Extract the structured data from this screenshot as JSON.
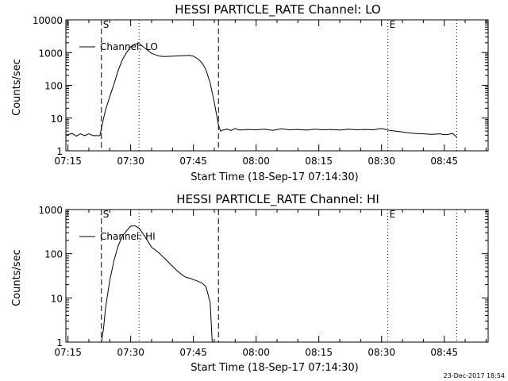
{
  "footer": {
    "timestamp": "23-Dec-2017 18:54"
  },
  "chart_data": [
    {
      "type": "line",
      "title": "HESSI PARTICLE_RATE Channel: LO",
      "xlabel": "Start Time (18-Sep-17 07:14:30)",
      "ylabel": "Counts/sec",
      "yscale": "log",
      "xlim": [
        "07:14:30",
        "08:55:30"
      ],
      "ylim": [
        1,
        10000
      ],
      "x_ticks": [
        "07:15",
        "07:30",
        "07:45",
        "08:00",
        "08:15",
        "08:30",
        "08:45"
      ],
      "y_ticks": [
        "1",
        "10",
        "100",
        "1000",
        "10000"
      ],
      "legend": {
        "position": "top-left",
        "label": "Channel: LO"
      },
      "markers": [
        {
          "label": "S",
          "time": "07:23:00",
          "style": "dashed"
        },
        {
          "label": "",
          "time": "07:32:00",
          "style": "dotted"
        },
        {
          "label": "",
          "time": "07:51:00",
          "style": "dashed"
        },
        {
          "label": "E",
          "time": "08:31:30",
          "style": "dotted"
        },
        {
          "label": "",
          "time": "08:48:00",
          "style": "dotted"
        }
      ],
      "series": [
        {
          "x": [
            "07:14:30",
            "07:16:00",
            "07:17:00",
            "07:18:00",
            "07:19:00",
            "07:20:00",
            "07:21:00",
            "07:22:00",
            "07:22:40",
            "07:23:00",
            "07:24:00",
            "07:25:00",
            "07:26:00",
            "07:27:00",
            "07:28:00",
            "07:29:00",
            "07:30:00",
            "07:31:00",
            "07:32:00",
            "07:33:00",
            "07:34:00",
            "07:35:00",
            "07:36:00",
            "07:37:00",
            "07:38:00",
            "07:40:00",
            "07:42:00",
            "07:44:00",
            "07:45:00",
            "07:46:00",
            "07:47:00",
            "07:48:00",
            "07:49:00",
            "07:50:00",
            "07:51:00",
            "07:51:30",
            "07:52:00",
            "07:53:00",
            "07:54:00",
            "07:55:00",
            "07:56:00",
            "07:58:00",
            "08:00:00",
            "08:02:00",
            "08:04:00",
            "08:06:00",
            "08:08:00",
            "08:10:00",
            "08:12:00",
            "08:14:00",
            "08:16:00",
            "08:18:00",
            "08:20:00",
            "08:22:00",
            "08:24:00",
            "08:26:00",
            "08:28:00",
            "08:30:00",
            "08:31:00",
            "08:32:00",
            "08:34:00",
            "08:36:00",
            "08:38:00",
            "08:40:00",
            "08:42:00",
            "08:44:00",
            "08:45:00",
            "08:46:00",
            "08:47:00",
            "08:48:00"
          ],
          "y": [
            3,
            3.4,
            2.8,
            3.3,
            2.9,
            3.3,
            2.9,
            2.9,
            2.9,
            5,
            18,
            45,
            110,
            280,
            600,
            1000,
            1500,
            1800,
            1900,
            1500,
            1200,
            950,
            850,
            780,
            760,
            780,
            800,
            820,
            780,
            650,
            500,
            300,
            120,
            30,
            6,
            4,
            4.3,
            4.6,
            4.2,
            4.8,
            4.3,
            4.5,
            4.4,
            4.6,
            4.2,
            4.7,
            4.4,
            4.5,
            4.3,
            4.6,
            4.4,
            4.5,
            4.3,
            4.6,
            4.4,
            4.5,
            4.4,
            4.8,
            4.5,
            4.2,
            3.9,
            3.6,
            3.4,
            3.3,
            3.2,
            3.3,
            3.1,
            3.2,
            3.4,
            2.6
          ]
        }
      ]
    },
    {
      "type": "line",
      "title": "HESSI PARTICLE_RATE Channel: HI",
      "xlabel": "Start Time (18-Sep-17 07:14:30)",
      "ylabel": "Counts/sec",
      "yscale": "log",
      "xlim": [
        "07:14:30",
        "08:55:30"
      ],
      "ylim": [
        1,
        1000
      ],
      "x_ticks": [
        "07:15",
        "07:30",
        "07:45",
        "08:00",
        "08:15",
        "08:30",
        "08:45"
      ],
      "y_ticks": [
        "1",
        "10",
        "100",
        "1000"
      ],
      "legend": {
        "position": "top-left",
        "label": "Channel: HI"
      },
      "markers": [
        {
          "label": "S",
          "time": "07:23:00",
          "style": "dashed"
        },
        {
          "label": "",
          "time": "07:32:00",
          "style": "dotted"
        },
        {
          "label": "",
          "time": "07:51:00",
          "style": "dashed"
        },
        {
          "label": "E",
          "time": "08:31:30",
          "style": "dotted"
        },
        {
          "label": "",
          "time": "08:48:00",
          "style": "dotted"
        }
      ],
      "series": [
        {
          "x": [
            "07:23:00",
            "07:23:30",
            "07:24:00",
            "07:25:00",
            "07:26:00",
            "07:27:00",
            "07:28:00",
            "07:29:00",
            "07:30:00",
            "07:31:00",
            "07:32:00",
            "07:33:00",
            "07:34:00",
            "07:35:00",
            "07:36:00",
            "07:37:00",
            "07:38:00",
            "07:39:00",
            "07:40:00",
            "07:41:00",
            "07:42:00",
            "07:43:00",
            "07:44:00",
            "07:45:00",
            "07:46:00",
            "07:47:00",
            "07:48:00",
            "07:49:00",
            "07:49:30"
          ],
          "y": [
            1,
            2,
            6,
            25,
            70,
            150,
            250,
            330,
            420,
            430,
            380,
            280,
            200,
            140,
            120,
            100,
            80,
            65,
            52,
            42,
            35,
            30,
            28,
            26,
            24,
            22,
            18,
            8,
            1
          ]
        }
      ]
    }
  ]
}
